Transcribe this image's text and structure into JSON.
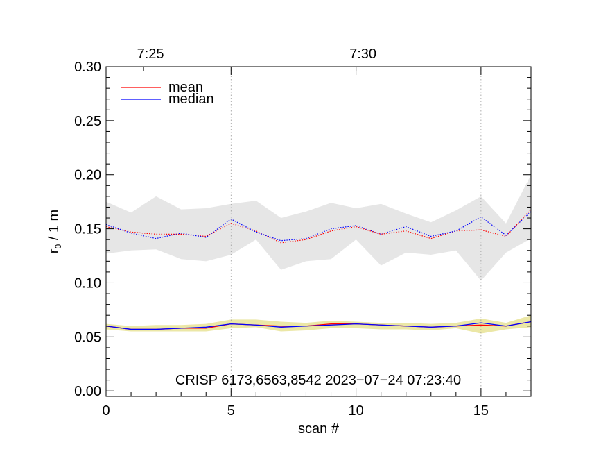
{
  "chart_data": {
    "type": "line",
    "title": "",
    "xlabel": "scan #",
    "ylabel_main": "r",
    "ylabel_sub": "0",
    "ylabel_rest": " / 1 m",
    "xlim": [
      0,
      17
    ],
    "ylim": [
      -0.005,
      0.3
    ],
    "x_ticks": [
      0,
      5,
      10,
      15
    ],
    "x_tick_labels": [
      "0",
      "5",
      "10",
      "15"
    ],
    "y_ticks": [
      0.0,
      0.05,
      0.1,
      0.15,
      0.2,
      0.25,
      0.3
    ],
    "y_tick_labels": [
      "0.00",
      "0.05",
      "0.10",
      "0.15",
      "0.20",
      "0.25",
      "0.30"
    ],
    "top_axis": {
      "ticks": [
        1.5,
        10
      ],
      "labels": [
        "7:25",
        "7:30"
      ],
      "dotted_gridlines_at_x": [
        5,
        10,
        15
      ]
    },
    "annotation": "CRISP 6173,6563,8542 2023−07−24 07:23:40",
    "legend": {
      "position": "top-left",
      "entries": [
        {
          "label": "mean",
          "color": "#ff0000"
        },
        {
          "label": "median",
          "color": "#0000ff"
        }
      ]
    },
    "x": [
      0,
      1,
      2,
      3,
      4,
      5,
      6,
      7,
      8,
      9,
      10,
      11,
      12,
      13,
      14,
      15,
      16,
      17
    ],
    "series": [
      {
        "name": "upper mean",
        "color": "#ff0000",
        "style": "dotted",
        "values": [
          0.152,
          0.147,
          0.145,
          0.145,
          0.143,
          0.155,
          0.148,
          0.137,
          0.14,
          0.148,
          0.152,
          0.145,
          0.148,
          0.141,
          0.148,
          0.149,
          0.143,
          0.168
        ]
      },
      {
        "name": "upper median",
        "color": "#0000ff",
        "style": "dotted",
        "values": [
          0.154,
          0.146,
          0.141,
          0.146,
          0.142,
          0.159,
          0.147,
          0.139,
          0.141,
          0.15,
          0.153,
          0.145,
          0.152,
          0.143,
          0.148,
          0.161,
          0.144,
          0.166
        ]
      },
      {
        "name": "lower mean",
        "color": "#ff0000",
        "style": "solid",
        "values": [
          0.06,
          0.057,
          0.057,
          0.058,
          0.058,
          0.062,
          0.061,
          0.06,
          0.06,
          0.062,
          0.062,
          0.061,
          0.06,
          0.059,
          0.06,
          0.061,
          0.06,
          0.064
        ]
      },
      {
        "name": "lower median",
        "color": "#0000ff",
        "style": "solid",
        "values": [
          0.06,
          0.057,
          0.057,
          0.058,
          0.059,
          0.062,
          0.061,
          0.059,
          0.06,
          0.061,
          0.062,
          0.061,
          0.06,
          0.059,
          0.06,
          0.063,
          0.06,
          0.064
        ]
      }
    ],
    "bands": [
      {
        "name": "upper spread",
        "color": "#e6e6e6",
        "upper": [
          0.175,
          0.165,
          0.18,
          0.168,
          0.169,
          0.173,
          0.176,
          0.16,
          0.166,
          0.174,
          0.169,
          0.173,
          0.164,
          0.156,
          0.167,
          0.18,
          0.155,
          0.2
        ],
        "lower": [
          0.127,
          0.13,
          0.131,
          0.122,
          0.12,
          0.126,
          0.14,
          0.112,
          0.12,
          0.122,
          0.14,
          0.116,
          0.128,
          0.126,
          0.13,
          0.102,
          0.128,
          0.141
        ]
      },
      {
        "name": "lower spread",
        "color": "#ebe7a6",
        "upper": [
          0.062,
          0.06,
          0.061,
          0.061,
          0.062,
          0.066,
          0.066,
          0.064,
          0.063,
          0.065,
          0.064,
          0.063,
          0.063,
          0.062,
          0.063,
          0.067,
          0.063,
          0.07
        ],
        "lower": [
          0.057,
          0.055,
          0.055,
          0.055,
          0.055,
          0.058,
          0.059,
          0.055,
          0.056,
          0.058,
          0.058,
          0.057,
          0.057,
          0.056,
          0.058,
          0.053,
          0.057,
          0.059
        ]
      }
    ]
  }
}
